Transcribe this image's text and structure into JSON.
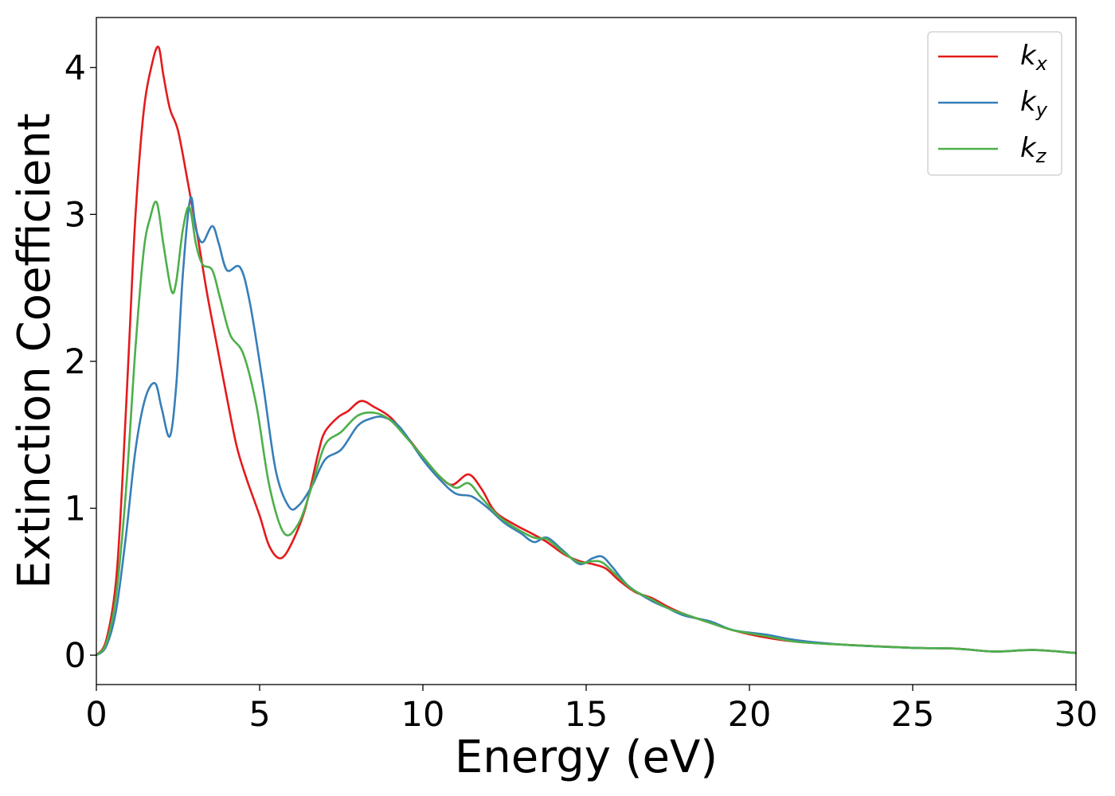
{
  "chart_data": {
    "type": "line",
    "title": "",
    "xlabel": "Energy (eV)",
    "ylabel": "Extinction Coefficient",
    "xlim": [
      0,
      30
    ],
    "ylim": [
      -0.2,
      4.34
    ],
    "xticks": [
      0,
      5,
      10,
      15,
      20,
      25,
      30
    ],
    "yticks": [
      0,
      1,
      2,
      3,
      4
    ],
    "grid": false,
    "legend_position": "top-right",
    "series": [
      {
        "name": "k_x",
        "label_base": "k",
        "label_sub": "x",
        "color": "#e41a1c",
        "points": [
          [
            0,
            0
          ],
          [
            0.3,
            0.1
          ],
          [
            0.6,
            0.5
          ],
          [
            0.8,
            1.2
          ],
          [
            1.0,
            2.1
          ],
          [
            1.2,
            3.0
          ],
          [
            1.45,
            3.7
          ],
          [
            1.7,
            4.02
          ],
          [
            1.9,
            4.14
          ],
          [
            2.05,
            3.95
          ],
          [
            2.25,
            3.72
          ],
          [
            2.5,
            3.57
          ],
          [
            2.8,
            3.22
          ],
          [
            3.1,
            2.85
          ],
          [
            3.4,
            2.45
          ],
          [
            3.7,
            2.1
          ],
          [
            4.0,
            1.75
          ],
          [
            4.3,
            1.42
          ],
          [
            4.6,
            1.2
          ],
          [
            5.0,
            0.95
          ],
          [
            5.3,
            0.74
          ],
          [
            5.65,
            0.66
          ],
          [
            6.0,
            0.77
          ],
          [
            6.4,
            1.0
          ],
          [
            6.8,
            1.38
          ],
          [
            7.0,
            1.52
          ],
          [
            7.4,
            1.62
          ],
          [
            7.7,
            1.66
          ],
          [
            8.1,
            1.73
          ],
          [
            8.5,
            1.69
          ],
          [
            9.0,
            1.62
          ],
          [
            9.5,
            1.49
          ],
          [
            10.0,
            1.35
          ],
          [
            10.5,
            1.22
          ],
          [
            10.9,
            1.16
          ],
          [
            11.4,
            1.23
          ],
          [
            11.8,
            1.13
          ],
          [
            12.2,
            0.98
          ],
          [
            12.8,
            0.89
          ],
          [
            13.4,
            0.82
          ],
          [
            13.8,
            0.77
          ],
          [
            14.3,
            0.69
          ],
          [
            14.8,
            0.64
          ],
          [
            15.2,
            0.62
          ],
          [
            15.6,
            0.59
          ],
          [
            16.0,
            0.51
          ],
          [
            16.5,
            0.43
          ],
          [
            17.0,
            0.39
          ],
          [
            17.5,
            0.33
          ],
          [
            18.0,
            0.28
          ],
          [
            18.8,
            0.22
          ],
          [
            19.5,
            0.17
          ],
          [
            20.5,
            0.12
          ],
          [
            21.5,
            0.09
          ],
          [
            23.0,
            0.07
          ],
          [
            25.0,
            0.05
          ],
          [
            26.3,
            0.045
          ],
          [
            27.5,
            0.025
          ],
          [
            28.7,
            0.035
          ],
          [
            30.0,
            0.015
          ]
        ]
      },
      {
        "name": "k_y",
        "label_base": "k",
        "label_sub": "y",
        "color": "#377eb8",
        "points": [
          [
            0,
            0
          ],
          [
            0.3,
            0.06
          ],
          [
            0.6,
            0.3
          ],
          [
            0.9,
            0.8
          ],
          [
            1.2,
            1.4
          ],
          [
            1.5,
            1.75
          ],
          [
            1.8,
            1.85
          ],
          [
            2.0,
            1.68
          ],
          [
            2.25,
            1.49
          ],
          [
            2.45,
            1.85
          ],
          [
            2.65,
            2.6
          ],
          [
            2.88,
            3.11
          ],
          [
            3.05,
            2.9
          ],
          [
            3.25,
            2.81
          ],
          [
            3.55,
            2.92
          ],
          [
            3.75,
            2.8
          ],
          [
            4.0,
            2.62
          ],
          [
            4.4,
            2.64
          ],
          [
            4.7,
            2.4
          ],
          [
            5.1,
            1.85
          ],
          [
            5.5,
            1.25
          ],
          [
            5.9,
            1.01
          ],
          [
            6.2,
            1.02
          ],
          [
            6.6,
            1.15
          ],
          [
            7.0,
            1.33
          ],
          [
            7.5,
            1.4
          ],
          [
            8.0,
            1.56
          ],
          [
            8.4,
            1.61
          ],
          [
            8.8,
            1.62
          ],
          [
            9.3,
            1.55
          ],
          [
            10.0,
            1.33
          ],
          [
            10.5,
            1.2
          ],
          [
            11.0,
            1.1
          ],
          [
            11.5,
            1.08
          ],
          [
            12.0,
            1.0
          ],
          [
            12.5,
            0.9
          ],
          [
            13.0,
            0.83
          ],
          [
            13.4,
            0.77
          ],
          [
            13.8,
            0.8
          ],
          [
            14.3,
            0.71
          ],
          [
            14.8,
            0.62
          ],
          [
            15.2,
            0.66
          ],
          [
            15.5,
            0.67
          ],
          [
            15.8,
            0.6
          ],
          [
            16.3,
            0.47
          ],
          [
            17.0,
            0.37
          ],
          [
            17.5,
            0.32
          ],
          [
            18.0,
            0.27
          ],
          [
            18.8,
            0.23
          ],
          [
            19.5,
            0.17
          ],
          [
            20.5,
            0.14
          ],
          [
            21.5,
            0.1
          ],
          [
            23.0,
            0.07
          ],
          [
            25.0,
            0.05
          ],
          [
            26.3,
            0.045
          ],
          [
            27.5,
            0.025
          ],
          [
            28.7,
            0.035
          ],
          [
            30.0,
            0.015
          ]
        ]
      },
      {
        "name": "k_z",
        "label_base": "k",
        "label_sub": "z",
        "color": "#4daf4a",
        "points": [
          [
            0,
            0
          ],
          [
            0.3,
            0.08
          ],
          [
            0.6,
            0.4
          ],
          [
            0.9,
            1.1
          ],
          [
            1.2,
            2.1
          ],
          [
            1.45,
            2.75
          ],
          [
            1.65,
            2.98
          ],
          [
            1.85,
            3.08
          ],
          [
            2.05,
            2.8
          ],
          [
            2.3,
            2.48
          ],
          [
            2.45,
            2.55
          ],
          [
            2.65,
            2.9
          ],
          [
            2.85,
            3.05
          ],
          [
            3.05,
            2.8
          ],
          [
            3.25,
            2.66
          ],
          [
            3.55,
            2.62
          ],
          [
            3.8,
            2.42
          ],
          [
            4.1,
            2.18
          ],
          [
            4.5,
            2.05
          ],
          [
            4.9,
            1.7
          ],
          [
            5.3,
            1.15
          ],
          [
            5.75,
            0.83
          ],
          [
            6.2,
            0.9
          ],
          [
            6.6,
            1.15
          ],
          [
            7.0,
            1.43
          ],
          [
            7.5,
            1.52
          ],
          [
            8.0,
            1.63
          ],
          [
            8.5,
            1.65
          ],
          [
            9.0,
            1.6
          ],
          [
            9.5,
            1.48
          ],
          [
            10.0,
            1.35
          ],
          [
            10.5,
            1.22
          ],
          [
            11.0,
            1.14
          ],
          [
            11.4,
            1.17
          ],
          [
            11.8,
            1.07
          ],
          [
            12.3,
            0.95
          ],
          [
            12.8,
            0.87
          ],
          [
            13.4,
            0.8
          ],
          [
            13.8,
            0.79
          ],
          [
            14.3,
            0.7
          ],
          [
            14.8,
            0.63
          ],
          [
            15.2,
            0.64
          ],
          [
            15.5,
            0.63
          ],
          [
            15.9,
            0.55
          ],
          [
            16.4,
            0.45
          ],
          [
            17.0,
            0.38
          ],
          [
            17.5,
            0.32
          ],
          [
            18.0,
            0.28
          ],
          [
            18.8,
            0.22
          ],
          [
            19.5,
            0.17
          ],
          [
            20.5,
            0.13
          ],
          [
            21.5,
            0.09
          ],
          [
            23.0,
            0.07
          ],
          [
            25.0,
            0.05
          ],
          [
            26.3,
            0.045
          ],
          [
            27.5,
            0.025
          ],
          [
            28.7,
            0.035
          ],
          [
            30.0,
            0.015
          ]
        ]
      }
    ]
  }
}
